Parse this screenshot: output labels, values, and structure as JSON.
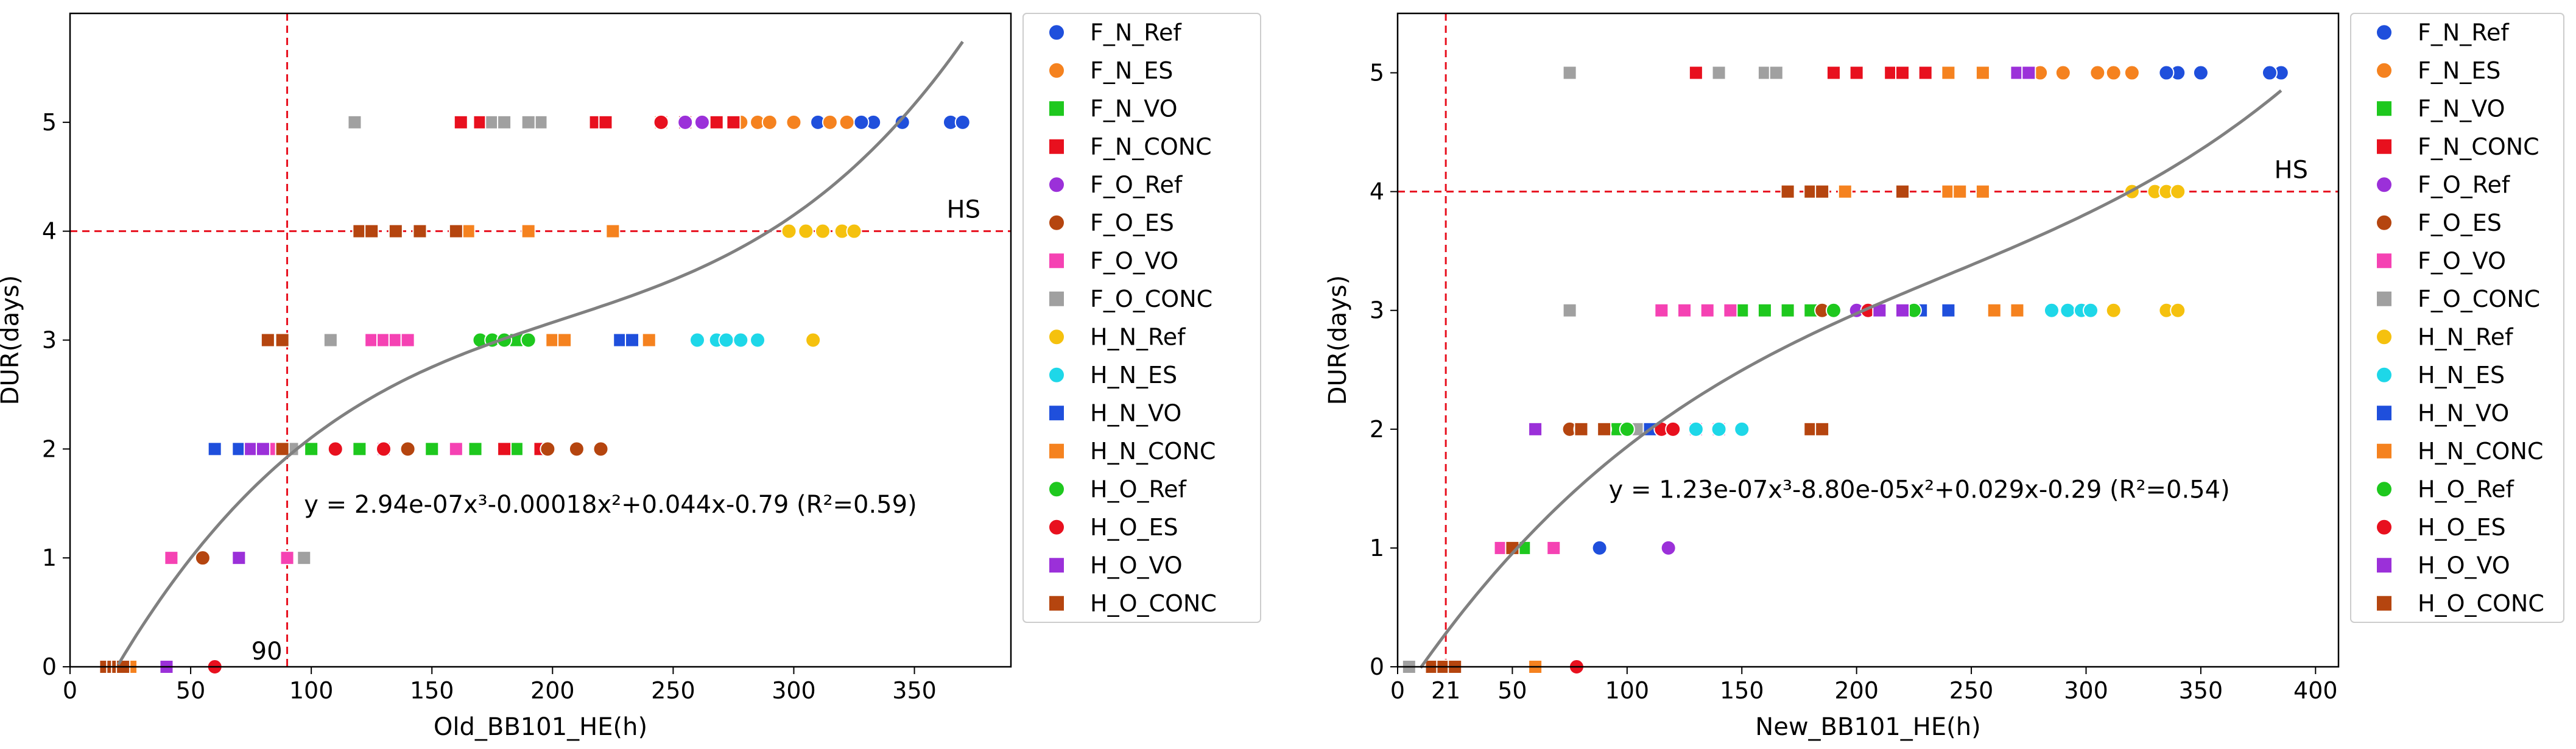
{
  "chart_data": [
    {
      "type": "scatter",
      "xlabel": "Old_BB101_HE(h)",
      "ylabel": "DUR(days)",
      "xlim": [
        0,
        390
      ],
      "ylim": [
        0,
        6
      ],
      "xticks": [
        0,
        50,
        100,
        150,
        200,
        250,
        300,
        350
      ],
      "yticks": [
        0,
        1,
        2,
        3,
        4,
        5
      ],
      "fit": {
        "label": "y = 2.94e-07x³-0.00018x²+0.044x-0.79 (R²=0.59)",
        "coeffs": [
          2.94e-07,
          -0.00018,
          0.044,
          -0.79
        ],
        "x_range": [
          20,
          370
        ],
        "color": "#808080"
      },
      "vline": {
        "x": 90,
        "label": "90"
      },
      "hline": {
        "y": 4,
        "label": "HS"
      },
      "legend_position": "outside-right",
      "series": [
        {
          "name": "F_N_Ref",
          "color": "#1f4fdc",
          "marker": "circle",
          "points": [
            [
              345,
              5
            ],
            [
              365,
              5
            ],
            [
              370,
              5
            ],
            [
              333,
              5
            ],
            [
              328,
              5
            ],
            [
              310,
              5
            ],
            [
              300,
              5
            ]
          ]
        },
        {
          "name": "F_N_ES",
          "color": "#f5821f",
          "marker": "circle",
          "points": [
            [
              285,
              5
            ],
            [
              278,
              5
            ],
            [
              290,
              5
            ],
            [
              300,
              5
            ],
            [
              315,
              5
            ],
            [
              322,
              5
            ]
          ]
        },
        {
          "name": "F_N_VO",
          "color": "#1ec81e",
          "marker": "square",
          "points": [
            [
              185,
              3
            ],
            [
              200,
              3
            ],
            [
              185,
              2
            ],
            [
              168,
              2
            ],
            [
              150,
              2
            ],
            [
              120,
              2
            ],
            [
              100,
              2
            ]
          ]
        },
        {
          "name": "F_N_CONC",
          "color": "#e8101e",
          "marker": "square",
          "points": [
            [
              162,
              5
            ],
            [
              170,
              5
            ],
            [
              180,
              5
            ],
            [
              218,
              5
            ],
            [
              222,
              5
            ],
            [
              255,
              5
            ],
            [
              268,
              5
            ],
            [
              275,
              5
            ],
            [
              180,
              2
            ],
            [
              195,
              2
            ]
          ]
        },
        {
          "name": "F_O_Ref",
          "color": "#9b30d9",
          "marker": "circle",
          "points": [
            [
              255,
              5
            ],
            [
              262,
              5
            ],
            [
              230,
              3
            ],
            [
              240,
              3
            ]
          ]
        },
        {
          "name": "F_O_ES",
          "color": "#b5450f",
          "marker": "circle",
          "points": [
            [
              55,
              1
            ],
            [
              198,
              2
            ],
            [
              210,
              2
            ],
            [
              220,
              2
            ],
            [
              130,
              2
            ],
            [
              140,
              2
            ]
          ]
        },
        {
          "name": "F_O_VO",
          "color": "#f542b3",
          "marker": "square",
          "points": [
            [
              42,
              1
            ],
            [
              90,
              1
            ],
            [
              125,
              3
            ],
            [
              130,
              3
            ],
            [
              135,
              3
            ],
            [
              140,
              3
            ],
            [
              85,
              2
            ],
            [
              90,
              2
            ],
            [
              130,
              2
            ],
            [
              160,
              2
            ]
          ]
        },
        {
          "name": "F_O_CONC",
          "color": "#a0a0a0",
          "marker": "square",
          "points": [
            [
              118,
              5
            ],
            [
              175,
              5
            ],
            [
              180,
              5
            ],
            [
              195,
              5
            ],
            [
              190,
              5
            ],
            [
              97,
              1
            ],
            [
              108,
              3
            ],
            [
              92,
              2
            ]
          ]
        },
        {
          "name": "H_N_Ref",
          "color": "#f5c10e",
          "marker": "circle",
          "points": [
            [
              298,
              4
            ],
            [
              305,
              4
            ],
            [
              312,
              4
            ],
            [
              320,
              4
            ],
            [
              325,
              4
            ],
            [
              308,
              3
            ]
          ]
        },
        {
          "name": "H_N_ES",
          "color": "#1ed7e8",
          "marker": "circle",
          "points": [
            [
              260,
              3
            ],
            [
              268,
              3
            ],
            [
              272,
              3
            ],
            [
              278,
              3
            ],
            [
              285,
              3
            ]
          ]
        },
        {
          "name": "H_N_VO",
          "color": "#1f4fdc",
          "marker": "square",
          "points": [
            [
              228,
              3
            ],
            [
              233,
              3
            ],
            [
              60,
              2
            ],
            [
              70,
              2
            ]
          ]
        },
        {
          "name": "H_N_CONC",
          "color": "#f5821f",
          "marker": "square",
          "points": [
            [
              25,
              0
            ],
            [
              165,
              4
            ],
            [
              225,
              4
            ],
            [
              245,
              5
            ],
            [
              240,
              3
            ],
            [
              200,
              3
            ],
            [
              205,
              3
            ],
            [
              190,
              4
            ]
          ]
        },
        {
          "name": "H_O_Ref",
          "color": "#1ec81e",
          "marker": "circle",
          "points": [
            [
              170,
              3
            ],
            [
              175,
              3
            ],
            [
              180,
              3
            ],
            [
              190,
              3
            ]
          ]
        },
        {
          "name": "H_O_ES",
          "color": "#e8101e",
          "marker": "circle",
          "points": [
            [
              60,
              0
            ],
            [
              245,
              5
            ],
            [
              130,
              2
            ],
            [
              110,
              2
            ]
          ]
        },
        {
          "name": "H_O_VO",
          "color": "#9b30d9",
          "marker": "square",
          "points": [
            [
              40,
              0
            ],
            [
              70,
              1
            ],
            [
              75,
              2
            ],
            [
              80,
              2
            ]
          ]
        },
        {
          "name": "H_O_CONC",
          "color": "#b5450f",
          "marker": "square",
          "points": [
            [
              15,
              0
            ],
            [
              18,
              0
            ],
            [
              20,
              0
            ],
            [
              22,
              0
            ],
            [
              120,
              4
            ],
            [
              125,
              4
            ],
            [
              135,
              4
            ],
            [
              145,
              4
            ],
            [
              160,
              4
            ],
            [
              82,
              3
            ],
            [
              88,
              3
            ],
            [
              88,
              2
            ]
          ]
        }
      ]
    },
    {
      "type": "scatter",
      "xlabel": "New_BB101_HE(h)",
      "ylabel": "DUR(days)",
      "xlim": [
        0,
        410
      ],
      "ylim": [
        0,
        5.5
      ],
      "xticks": [
        0,
        50,
        100,
        150,
        200,
        250,
        300,
        350,
        400
      ],
      "extra_xticks": [
        21
      ],
      "yticks": [
        0,
        1,
        2,
        3,
        4,
        5
      ],
      "fit": {
        "label": "y = 1.23e-07x³-8.80e-05x²+0.029x-0.29 (R²=0.54)",
        "coeffs": [
          1.23e-07,
          -8.8e-05,
          0.029,
          -0.29
        ],
        "x_range": [
          10,
          385
        ],
        "color": "#808080"
      },
      "vline": {
        "x": 21,
        "label": "21"
      },
      "hline": {
        "y": 4,
        "label": "HS"
      },
      "legend_position": "outside-right",
      "series": [
        {
          "name": "F_N_Ref",
          "color": "#1f4fdc",
          "marker": "circle",
          "points": [
            [
              385,
              5
            ],
            [
              380,
              5
            ],
            [
              350,
              5
            ],
            [
              340,
              5
            ],
            [
              335,
              5
            ],
            [
              88,
              1
            ]
          ]
        },
        {
          "name": "F_N_ES",
          "color": "#f5821f",
          "marker": "circle",
          "points": [
            [
              320,
              5
            ],
            [
              312,
              5
            ],
            [
              305,
              5
            ],
            [
              290,
              5
            ],
            [
              280,
              5
            ]
          ]
        },
        {
          "name": "F_N_VO",
          "color": "#1ec81e",
          "marker": "square",
          "points": [
            [
              55,
              1
            ],
            [
              150,
              3
            ],
            [
              160,
              3
            ],
            [
              170,
              3
            ],
            [
              180,
              3
            ],
            [
              95,
              2
            ],
            [
              105,
              2
            ]
          ]
        },
        {
          "name": "F_N_CONC",
          "color": "#e8101e",
          "marker": "square",
          "points": [
            [
              130,
              5
            ],
            [
              190,
              5
            ],
            [
              200,
              5
            ],
            [
              215,
              5
            ],
            [
              220,
              5
            ],
            [
              230,
              5
            ],
            [
              18,
              0
            ]
          ]
        },
        {
          "name": "F_O_Ref",
          "color": "#9b30d9",
          "marker": "circle",
          "points": [
            [
              118,
              1
            ],
            [
              60,
              0
            ],
            [
              200,
              3
            ],
            [
              210,
              3
            ]
          ]
        },
        {
          "name": "F_O_ES",
          "color": "#b5450f",
          "marker": "circle",
          "points": [
            [
              75,
              2
            ],
            [
              80,
              2
            ],
            [
              90,
              2
            ],
            [
              100,
              2
            ],
            [
              185,
              3
            ]
          ]
        },
        {
          "name": "F_O_VO",
          "color": "#f542b3",
          "marker": "square",
          "points": [
            [
              45,
              1
            ],
            [
              68,
              1
            ],
            [
              115,
              3
            ],
            [
              125,
              3
            ],
            [
              135,
              3
            ],
            [
              145,
              3
            ],
            [
              130,
              2
            ],
            [
              140,
              2
            ]
          ]
        },
        {
          "name": "F_O_CONC",
          "color": "#a0a0a0",
          "marker": "square",
          "points": [
            [
              5,
              0
            ],
            [
              75,
              5
            ],
            [
              140,
              5
            ],
            [
              160,
              5
            ],
            [
              165,
              5
            ],
            [
              75,
              3
            ],
            [
              105,
              2
            ]
          ]
        },
        {
          "name": "H_N_Ref",
          "color": "#f5c10e",
          "marker": "circle",
          "points": [
            [
              320,
              4
            ],
            [
              330,
              4
            ],
            [
              335,
              4
            ],
            [
              340,
              4
            ],
            [
              335,
              3
            ],
            [
              340,
              3
            ],
            [
              312,
              3
            ]
          ]
        },
        {
          "name": "H_N_ES",
          "color": "#1ed7e8",
          "marker": "circle",
          "points": [
            [
              285,
              3
            ],
            [
              292,
              3
            ],
            [
              298,
              3
            ],
            [
              302,
              3
            ],
            [
              130,
              2
            ],
            [
              140,
              2
            ],
            [
              150,
              2
            ]
          ]
        },
        {
          "name": "H_N_VO",
          "color": "#1f4fdc",
          "marker": "square",
          "points": [
            [
              228,
              3
            ],
            [
              240,
              3
            ],
            [
              110,
              2
            ]
          ]
        },
        {
          "name": "H_N_CONC",
          "color": "#f5821f",
          "marker": "square",
          "points": [
            [
              240,
              4
            ],
            [
              245,
              4
            ],
            [
              255,
              4
            ],
            [
              195,
              4
            ],
            [
              240,
              5
            ],
            [
              255,
              5
            ],
            [
              260,
              3
            ],
            [
              270,
              3
            ],
            [
              60,
              0
            ]
          ]
        },
        {
          "name": "H_O_Ref",
          "color": "#1ec81e",
          "marker": "circle",
          "points": [
            [
              225,
              3
            ],
            [
              190,
              3
            ],
            [
              100,
              2
            ]
          ]
        },
        {
          "name": "H_O_ES",
          "color": "#e8101e",
          "marker": "circle",
          "points": [
            [
              78,
              0
            ],
            [
              115,
              2
            ],
            [
              120,
              2
            ],
            [
              205,
              3
            ]
          ]
        },
        {
          "name": "H_O_VO",
          "color": "#9b30d9",
          "marker": "square",
          "points": [
            [
              60,
              2
            ],
            [
              270,
              5
            ],
            [
              275,
              5
            ],
            [
              210,
              3
            ],
            [
              220,
              3
            ]
          ]
        },
        {
          "name": "H_O_CONC",
          "color": "#b5450f",
          "marker": "square",
          "points": [
            [
              15,
              0
            ],
            [
              20,
              0
            ],
            [
              25,
              0
            ],
            [
              170,
              4
            ],
            [
              180,
              4
            ],
            [
              185,
              4
            ],
            [
              220,
              4
            ],
            [
              50,
              1
            ],
            [
              80,
              2
            ],
            [
              90,
              2
            ],
            [
              180,
              2
            ],
            [
              185,
              2
            ]
          ]
        }
      ]
    }
  ]
}
